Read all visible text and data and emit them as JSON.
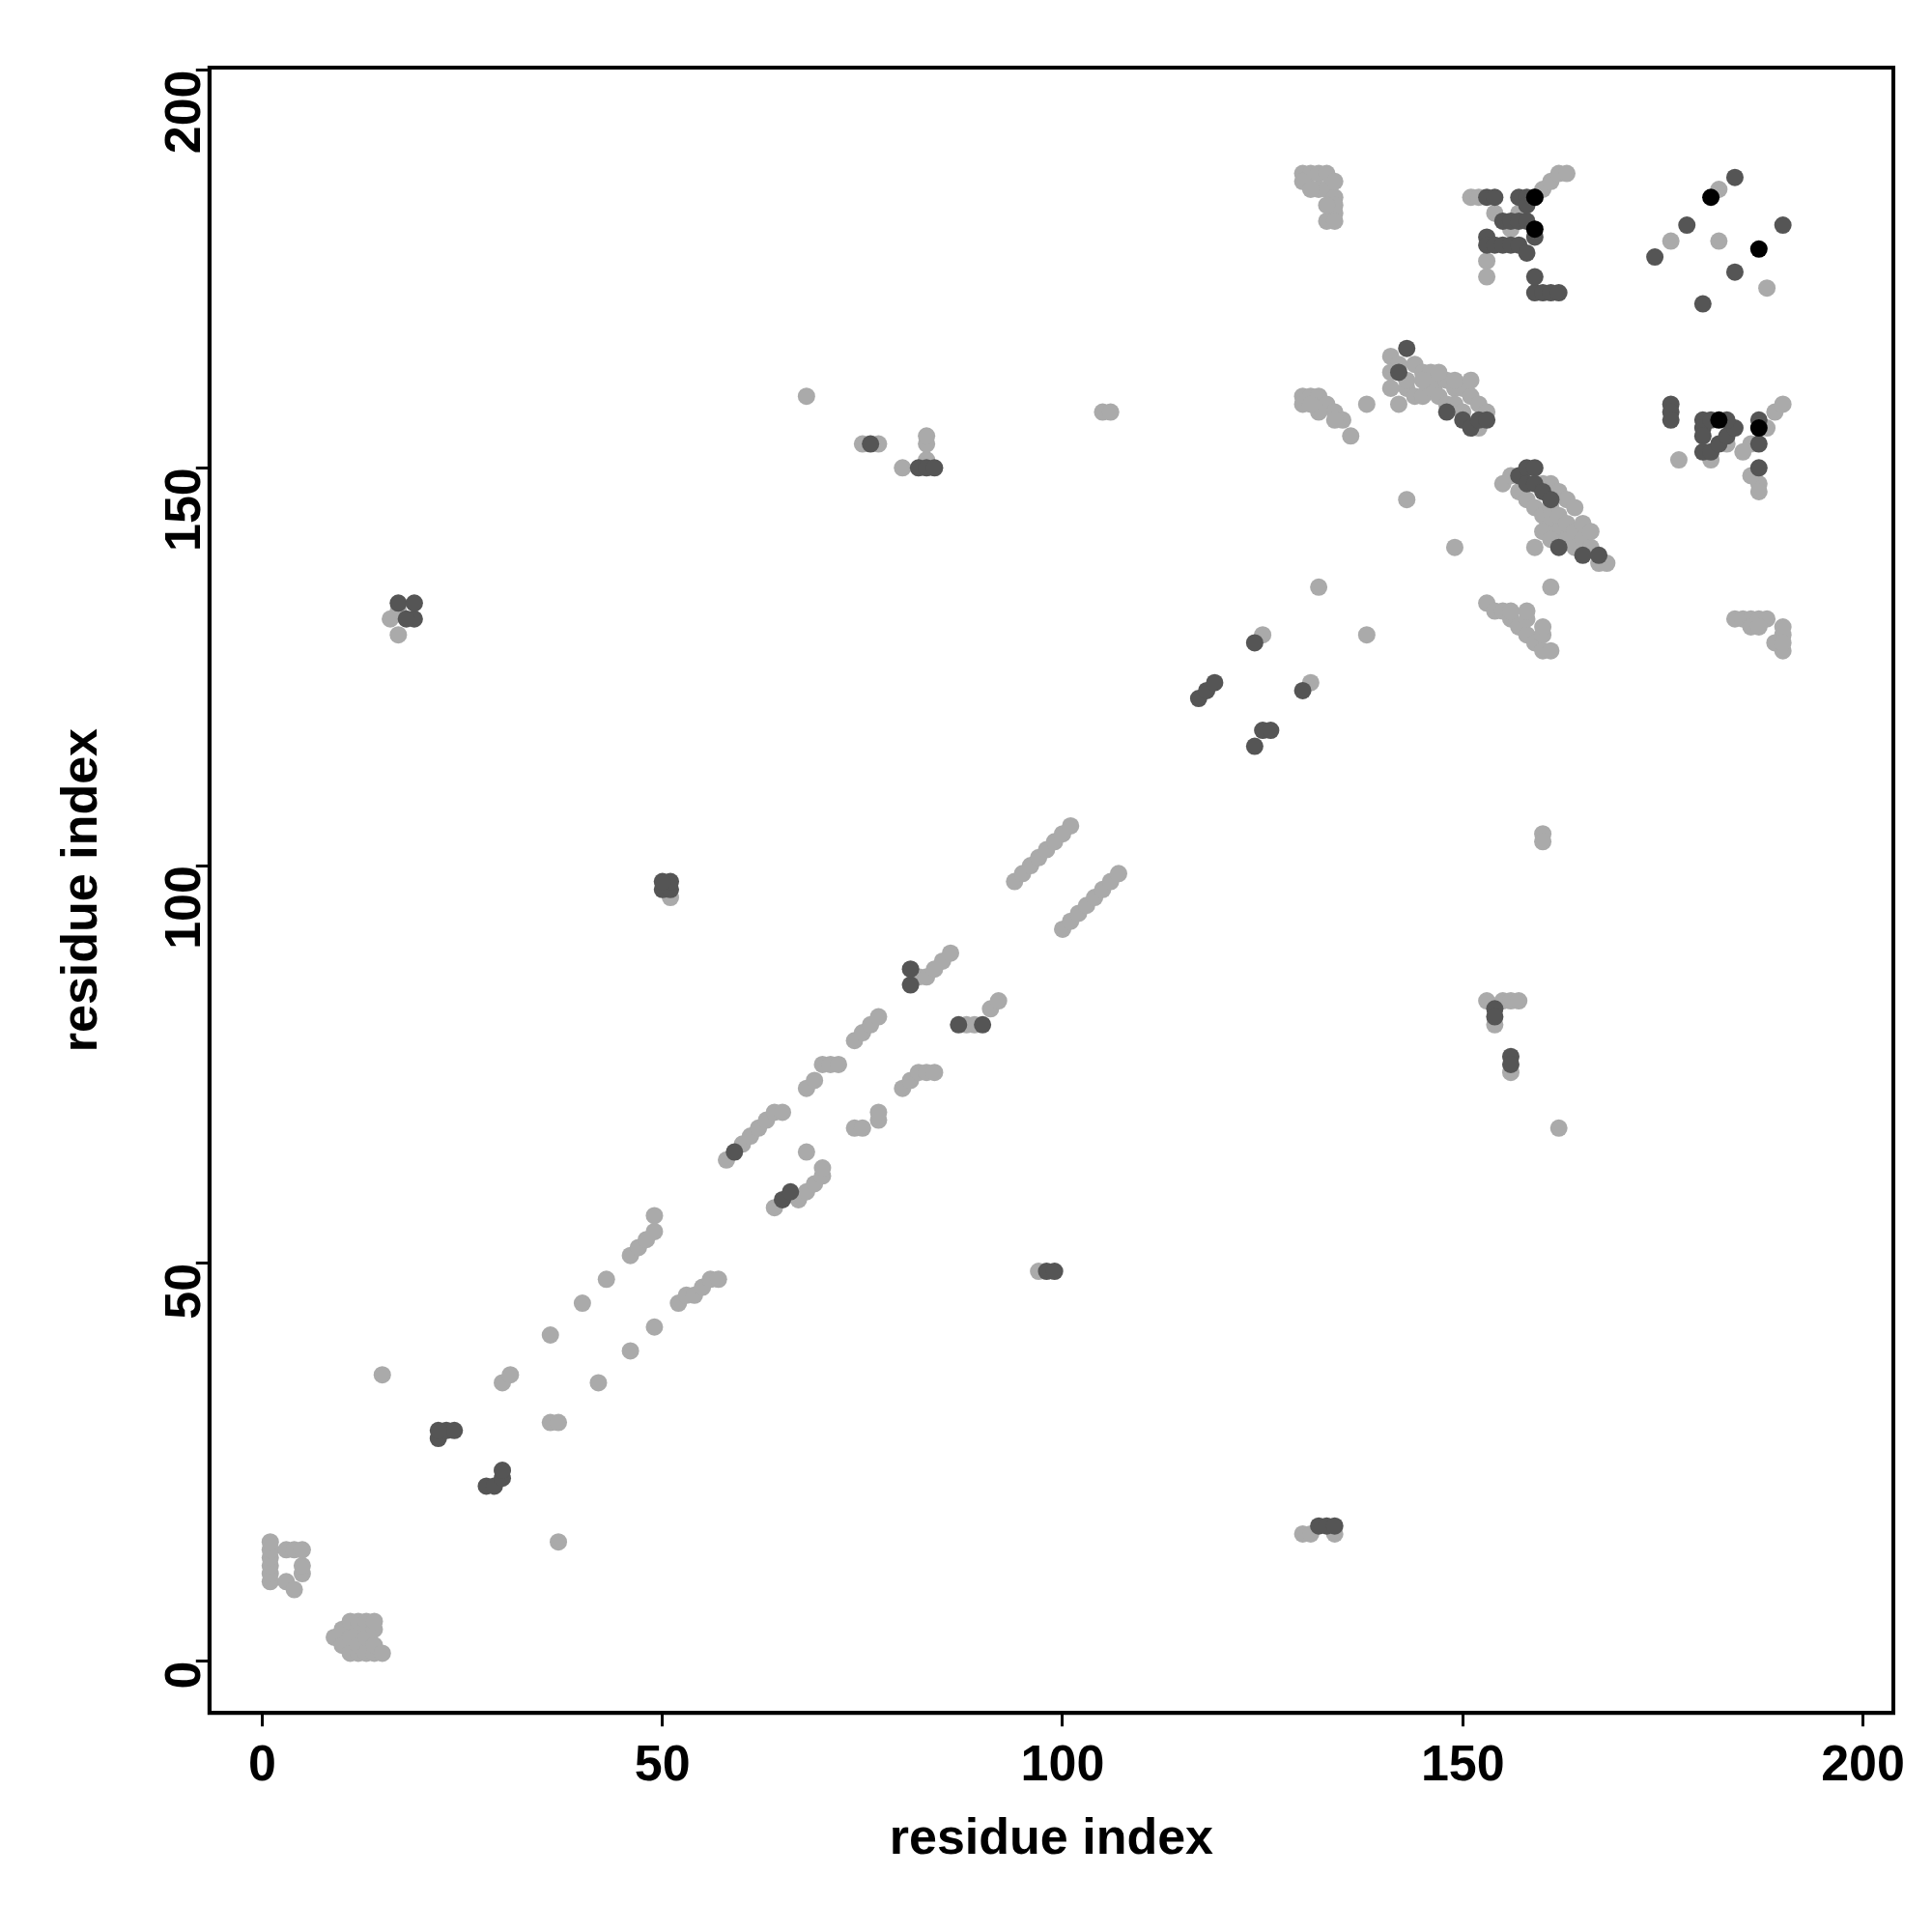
{
  "chart_data": {
    "type": "scatter",
    "xlabel": "residue index",
    "ylabel": "residue index",
    "xlim": [
      -6.6,
      203.8
    ],
    "ylim": [
      -6.5,
      200.3
    ],
    "xticks": [
      0,
      50,
      100,
      150,
      200
    ],
    "yticks": [
      0,
      50,
      100,
      150,
      200
    ],
    "grid": false,
    "legend": false,
    "marker": "circle",
    "series": [
      {
        "color": "#aaaaaa",
        "x": [
          1,
          1,
          1,
          1,
          1,
          1,
          3,
          3,
          4,
          4,
          5,
          5,
          5,
          9,
          10,
          10,
          11,
          11,
          11,
          12,
          12,
          12,
          12,
          13,
          13,
          13,
          14,
          14,
          14,
          14,
          15,
          15,
          37,
          16,
          17,
          17,
          18,
          30,
          31,
          36,
          37,
          36,
          40,
          42,
          43,
          46,
          46,
          47,
          48,
          49,
          49,
          49,
          52,
          53,
          54,
          55,
          56,
          57,
          51,
          97,
          58,
          60,
          61,
          62,
          63,
          64,
          65,
          64,
          67,
          68,
          69,
          70,
          70,
          68,
          68,
          69,
          70,
          71,
          72,
          74,
          75,
          76,
          77,
          74,
          75,
          77,
          77,
          80,
          81,
          82,
          83,
          84,
          82,
          83,
          84,
          85,
          86,
          88,
          89,
          91,
          92,
          94,
          95,
          96,
          97,
          98,
          99,
          100,
          101,
          100,
          101,
          102,
          103,
          104,
          105,
          106,
          107,
          68,
          75,
          77,
          80,
          83,
          83,
          83,
          105,
          106,
          125,
          131,
          132,
          138,
          138,
          143,
          149,
          161,
          160,
          160,
          162,
          153,
          154,
          155,
          156,
          157,
          156,
          130,
          131,
          134,
          130,
          131,
          132,
          133,
          130,
          132,
          133,
          134,
          134,
          134,
          133,
          134,
          131,
          134,
          133,
          130,
          131,
          132,
          133,
          134,
          135,
          130,
          132,
          134,
          136,
          131,
          141,
          142,
          144,
          145,
          146,
          147,
          148,
          149,
          150,
          151,
          152,
          153,
          141,
          143,
          144,
          145,
          146,
          147,
          148,
          149,
          150,
          152,
          141,
          142,
          143,
          145,
          147,
          149,
          151,
          153,
          154,
          155,
          156,
          157,
          158,
          159,
          160,
          161,
          156,
          158,
          160,
          158,
          160,
          155,
          156,
          157,
          158,
          159,
          160,
          161,
          162,
          163,
          164,
          161,
          162,
          163,
          164,
          165,
          166,
          167,
          168,
          160,
          161,
          162,
          163,
          164,
          165,
          166,
          160,
          161,
          159,
          151,
          152,
          154,
          153,
          153,
          160,
          161,
          162,
          163,
          157,
          156,
          176,
          182,
          188,
          182,
          177,
          186,
          188,
          189,
          190,
          187,
          187,
          186,
          183,
          185,
          181,
          184,
          185,
          186,
          187,
          190,
          189,
          190,
          186,
          188,
          190,
          187,
          190
        ],
        "values": [
          10,
          11,
          12,
          13,
          14,
          15,
          10,
          14,
          9,
          14,
          11,
          12,
          14,
          3,
          2,
          4,
          1,
          3,
          5,
          1,
          2,
          4,
          5,
          1,
          3,
          5,
          1,
          2,
          4,
          5,
          1,
          36,
          15,
          131,
          129,
          132,
          null,
          35,
          36,
          30,
          30,
          41,
          45,
          35,
          48,
          39,
          51,
          52,
          53,
          54,
          56,
          42,
          45,
          46,
          46,
          47,
          48,
          48,
          96,
          49,
          63,
          65,
          66,
          67,
          68,
          69,
          69,
          57,
          58,
          59,
          60,
          61,
          62,
          64,
          72,
          73,
          75,
          75,
          75,
          78,
          79,
          80,
          81,
          67,
          67,
          68,
          69,
          72,
          73,
          74,
          74,
          74,
          86,
          86,
          87,
          88,
          89,
          80,
          80,
          82,
          83,
          98,
          99,
          100,
          101,
          102,
          103,
          104,
          105,
          92,
          93,
          94,
          95,
          96,
          97,
          98,
          99,
          159,
          153,
          153,
          150,
          151,
          153,
          154,
          157,
          157,
          129,
          123,
          135,
          129,
          158,
          146,
          140,
          135,
          104,
          103,
          67,
          83,
          80,
          83,
          83,
          83,
          74,
          16,
          16,
          16,
          187,
          187,
          187,
          187,
          186,
          185,
          185,
          184,
          183,
          182,
          181,
          181,
          185,
          186,
          183,
          159,
          159,
          159,
          158,
          157,
          156,
          158,
          157,
          156,
          154,
          158,
          164,
          163,
          163,
          162,
          162,
          161,
          161,
          160,
          160,
          159,
          158,
          157,
          162,
          160,
          159,
          159,
          160,
          159,
          158,
          158,
          157,
          155,
          160,
          158,
          161,
          161,
          162,
          161,
          161,
          133,
          132,
          132,
          131,
          130,
          129,
          128,
          127,
          127,
          132,
          131,
          129,
          132,
          130,
          148,
          149,
          147,
          146,
          145,
          144,
          143,
          142,
          141,
          140,
          145,
          144,
          143,
          142,
          141,
          140,
          138,
          138,
          148,
          148,
          147,
          146,
          145,
          143,
          142,
          142,
          141,
          140,
          184,
          184,
          182,
          176,
          174,
          185,
          186,
          187,
          187,
          182,
          180,
          178.5,
          185,
          172.6,
          178.5,
          151,
          153,
          155,
          157,
          158,
          148,
          147,
          149,
          153,
          152,
          151,
          131,
          131,
          131,
          131,
          129,
          128,
          127,
          130,
          131,
          130,
          130,
          128
        ]
      },
      {
        "color": "#555555",
        "x": [
          17,
          19,
          19,
          18,
          22,
          23,
          24,
          22,
          28,
          29,
          30,
          30,
          50,
          51,
          51,
          50,
          98,
          99,
          59,
          65,
          66,
          81,
          81,
          87,
          90,
          76,
          82,
          83,
          84,
          117,
          118,
          119,
          124,
          125,
          126,
          124,
          130,
          154,
          154,
          156,
          156,
          132,
          133,
          134,
          143,
          142,
          150,
          151,
          152,
          153,
          148,
          157,
          158,
          159,
          158,
          159,
          160,
          161,
          165,
          167,
          162,
          153,
          154,
          157,
          158,
          159,
          155,
          156,
          157,
          158,
          153,
          153,
          154,
          155,
          156,
          157,
          158,
          159,
          160,
          161,
          162,
          159,
          158,
          159,
          174,
          178,
          184,
          180,
          184,
          190,
          176,
          176,
          176,
          180,
          180,
          180,
          180,
          181,
          182,
          183,
          184,
          181,
          183,
          187,
          187,
          187
        ],
        "values": [
          133,
          131,
          133,
          131,
          28,
          29,
          29,
          29,
          22,
          22,
          23,
          24,
          97,
          97,
          98,
          98,
          49,
          49,
          64,
          58,
          59,
          85,
          87,
          80,
          80,
          153,
          150,
          150,
          150,
          121,
          122,
          123,
          128,
          117,
          117,
          115,
          122,
          82,
          81,
          76,
          75,
          17,
          17,
          17,
          165,
          162,
          156,
          155,
          156,
          156,
          157,
          149,
          150,
          150,
          148,
          148,
          147,
          146,
          139,
          139,
          140,
          184,
          184,
          184,
          184,
          184,
          181,
          181,
          181,
          181,
          179,
          178,
          178,
          178,
          178,
          178,
          177,
          172,
          172,
          172,
          172,
          174,
          183,
          179,
          176.5,
          180.5,
          186.5,
          170.6,
          174.6,
          180.5,
          158,
          157,
          156,
          156,
          155,
          154,
          152,
          152,
          153,
          154,
          155,
          156,
          156,
          153,
          156,
          150
        ]
      },
      {
        "color": "#000000",
        "x": [
          159,
          159,
          181,
          187,
          182,
          187
        ],
        "values": [
          180,
          184,
          184,
          177.5,
          156,
          155
        ]
      }
    ]
  }
}
